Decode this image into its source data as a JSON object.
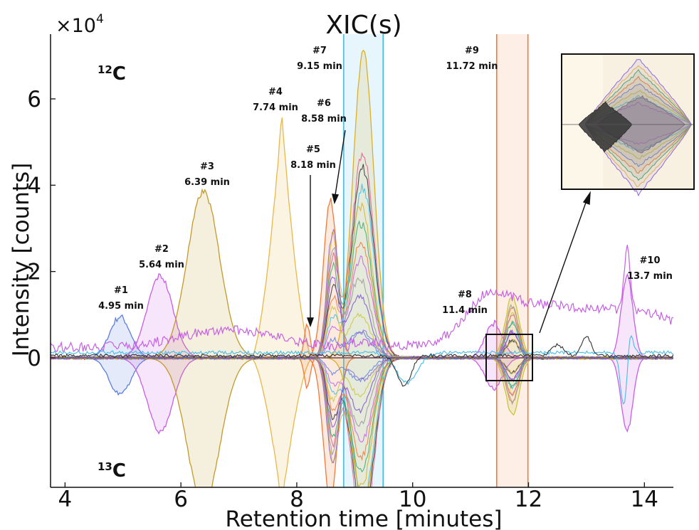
{
  "chart_data": {
    "type": "line",
    "title": "XIC(s)",
    "xlabel": "Retention time [minutes]",
    "ylabel": "Intensity [counts]",
    "y_multiplier": "×10",
    "y_multiplier_exp": "4",
    "xlim": [
      3.75,
      14.5
    ],
    "ylim": [
      -3,
      7.5
    ],
    "x_ticks": [
      4,
      6,
      8,
      10,
      12,
      14
    ],
    "y_ticks": [
      0,
      2,
      4,
      6
    ],
    "grid": false,
    "isotope_labels": {
      "top": {
        "mass": "12",
        "element": "C"
      },
      "bottom": {
        "mass": "13",
        "element": "C"
      }
    },
    "peaks": [
      {
        "id": "#1",
        "time": "4.95 min",
        "rt": 4.95,
        "height": 0.95,
        "width": 0.18,
        "color": "#5b7fe0"
      },
      {
        "id": "#2",
        "time": "5.64 min",
        "rt": 5.64,
        "height": 1.9,
        "width": 0.22,
        "color": "#c75fe6"
      },
      {
        "id": "#3",
        "time": "6.39 min",
        "rt": 6.39,
        "height": 3.85,
        "width": 0.28,
        "color": "#c39a2a"
      },
      {
        "id": "#4",
        "time": "7.74 min",
        "rt": 7.74,
        "height": 5.6,
        "width": 0.22,
        "color": "#e8b84a"
      },
      {
        "id": "#5",
        "time": "8.18 min",
        "rt": 8.18,
        "height": 0.8,
        "width": 0.05,
        "color": "#f07a3a"
      },
      {
        "id": "#6",
        "time": "8.58 min",
        "rt": 8.58,
        "height": 3.65,
        "width": 0.12,
        "color": "#f07a3a"
      },
      {
        "id": "#7",
        "time": "9.15 min",
        "rt": 9.15,
        "height": 7.1,
        "width": 0.18,
        "color": "#d8b02a"
      },
      {
        "id": "#8",
        "time": "11.4 min",
        "rt": 11.4,
        "height": 0.8,
        "width": 0.15,
        "color": "#c75fe6"
      },
      {
        "id": "#9",
        "time": "11.72 min",
        "rt": 11.72,
        "height": 1.45,
        "width": 0.12,
        "color": "#c9c73a"
      },
      {
        "id": "#10",
        "time": "13.7 min",
        "rt": 13.7,
        "height": 1.9,
        "width": 0.1,
        "color": "#c75fe6"
      }
    ],
    "tall_bands": [
      {
        "name": "",
        "center": 9.15,
        "half_width": 0.34,
        "color": "#42bde8"
      },
      {
        "name": "",
        "center": 11.72,
        "half_width": 0.27,
        "color": "#f07a3a"
      }
    ],
    "colors": {
      "blue": "#5b7fe0",
      "magenta": "#c75fe6",
      "ochre": "#c39a2a",
      "gold": "#e8b84a",
      "orange": "#f07a3a",
      "cyan": "#42bde8",
      "olive": "#c9c73a",
      "dark": "#333333"
    }
  }
}
